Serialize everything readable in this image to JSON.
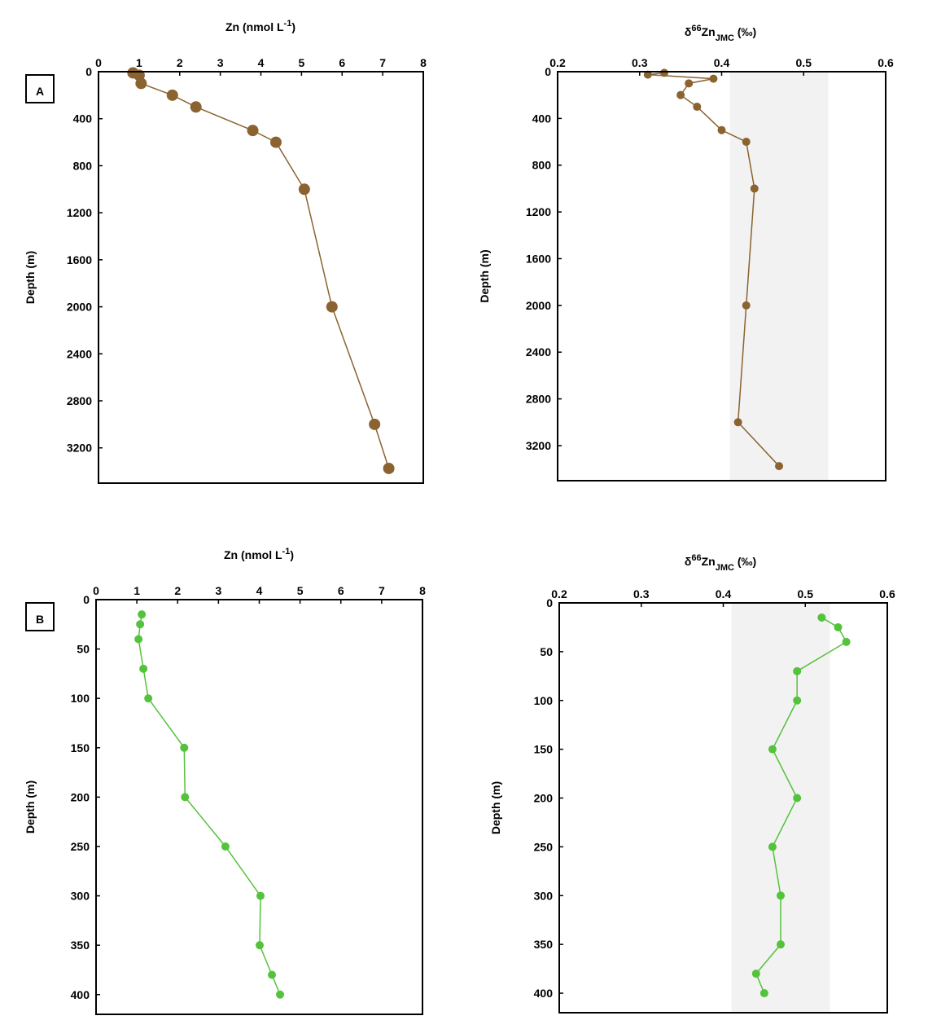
{
  "chart_data": [
    {
      "type": "line",
      "panel_label": "A",
      "xlabel": [
        {
          "text": "Zn (nmol L"
        },
        {
          "text": "-1",
          "shift": "super"
        },
        {
          "text": ")"
        }
      ],
      "ylabel": "Depth (m)",
      "color": "#8b6330",
      "marker_size": 7,
      "values": [
        0.85,
        1.0,
        1.05,
        1.82,
        2.4,
        3.8,
        4.37,
        5.07,
        5.75,
        6.8,
        7.15
      ],
      "depth": [
        10,
        30,
        100,
        200,
        300,
        500,
        600,
        1000,
        2000,
        3000,
        3375
      ],
      "xlim": [
        0,
        8
      ],
      "xticks": [
        0,
        1,
        2,
        3,
        4,
        5,
        6,
        7,
        8
      ],
      "ylim": [
        0,
        3500
      ],
      "yticks": [
        0,
        400,
        800,
        1200,
        1600,
        2000,
        2400,
        2800,
        3200
      ]
    },
    {
      "type": "line",
      "xlabel": [
        {
          "text": "δ"
        },
        {
          "text": "66",
          "shift": "super"
        },
        {
          "text": "Zn"
        },
        {
          "text": "JMC",
          "shift": "sub"
        },
        {
          "text": " (‰)"
        }
      ],
      "ylabel": "Depth (m)",
      "color": "#8b6330",
      "marker_size": 5,
      "band": [
        0.41,
        0.53
      ],
      "band_color": "#f2f2f2",
      "values": [
        0.33,
        0.31,
        0.39,
        0.36,
        0.35,
        0.37,
        0.4,
        0.43,
        0.44,
        0.43,
        0.42,
        0.47
      ],
      "depth": [
        10,
        25,
        60,
        100,
        200,
        300,
        500,
        600,
        1000,
        2000,
        3000,
        3375
      ],
      "xlim": [
        0.2,
        0.6
      ],
      "xticks": [
        0.2,
        0.3,
        0.4,
        0.5,
        0.6
      ],
      "ylim": [
        0,
        3500
      ],
      "yticks": [
        0,
        400,
        800,
        1200,
        1600,
        2000,
        2400,
        2800,
        3200
      ]
    },
    {
      "type": "line",
      "panel_label": "B",
      "xlabel": [
        {
          "text": "Zn (nmol L"
        },
        {
          "text": "-1",
          "shift": "super"
        },
        {
          "text": ")"
        }
      ],
      "ylabel": "Depth (m)",
      "color": "#55c23c",
      "marker_size": 5,
      "values": [
        1.12,
        1.08,
        1.04,
        1.16,
        1.28,
        2.16,
        2.18,
        3.17,
        4.03,
        4.01,
        4.31,
        4.51
      ],
      "depth": [
        15,
        25,
        40,
        70,
        100,
        150,
        200,
        250,
        300,
        350,
        380,
        400
      ],
      "xlim": [
        0,
        8
      ],
      "xticks": [
        0,
        1,
        2,
        3,
        4,
        5,
        6,
        7,
        8
      ],
      "ylim": [
        0,
        420
      ],
      "yticks": [
        0,
        50,
        100,
        150,
        200,
        250,
        300,
        350,
        400
      ]
    },
    {
      "type": "line",
      "xlabel": [
        {
          "text": "δ"
        },
        {
          "text": "66",
          "shift": "super"
        },
        {
          "text": "Zn"
        },
        {
          "text": "JMC",
          "shift": "sub"
        },
        {
          "text": " (‰)"
        }
      ],
      "ylabel": "Depth (m)",
      "color": "#55c23c",
      "marker_size": 5,
      "band": [
        0.41,
        0.53
      ],
      "band_color": "#f2f2f2",
      "values": [
        0.52,
        0.54,
        0.55,
        0.49,
        0.49,
        0.46,
        0.49,
        0.46,
        0.47,
        0.47,
        0.44,
        0.45
      ],
      "depth": [
        15,
        25,
        40,
        70,
        100,
        150,
        200,
        250,
        300,
        350,
        380,
        400
      ],
      "xlim": [
        0.2,
        0.6
      ],
      "xticks": [
        0.2,
        0.3,
        0.4,
        0.5,
        0.6
      ],
      "ylim": [
        0,
        420
      ],
      "yticks": [
        0,
        50,
        100,
        150,
        200,
        250,
        300,
        350,
        400
      ]
    }
  ]
}
